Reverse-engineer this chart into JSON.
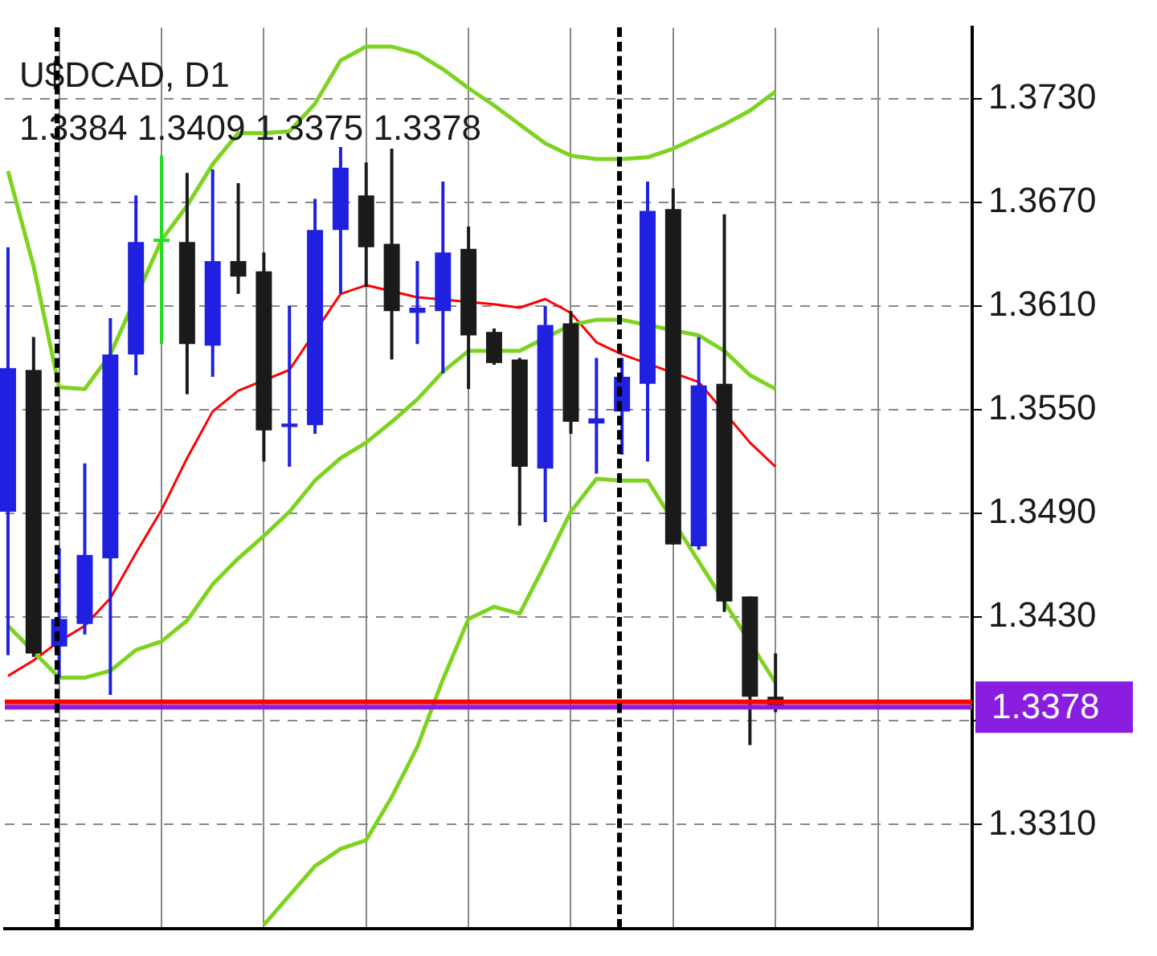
{
  "chart_data": {
    "type": "candlestick",
    "title": "U$DCAD, D1",
    "annotations": [
      "1.3384 1.3409 1.3375 1.3378"
    ],
    "categories": [
      null,
      null,
      null,
      null,
      null,
      null,
      null,
      null,
      null,
      null,
      null,
      null,
      null,
      null,
      null,
      null,
      null,
      null,
      null,
      null,
      null,
      null,
      null,
      null,
      null,
      null,
      null,
      null,
      null,
      null,
      null
    ],
    "ohlc": [
      [
        1.3491,
        1.3644,
        1.3408,
        1.3574
      ],
      [
        1.3573,
        1.3592,
        1.3407,
        1.3409
      ],
      [
        1.3413,
        1.347,
        1.3395,
        1.3429
      ],
      [
        1.3426,
        1.3519,
        1.342,
        1.3466
      ],
      [
        1.3464,
        1.3603,
        1.3385,
        1.3582
      ],
      [
        1.3582,
        1.3674,
        1.357,
        1.3647
      ],
      [
        1.3648,
        1.3697,
        1.3588,
        1.3648
      ],
      [
        1.3647,
        1.3687,
        1.3559,
        1.3588
      ],
      [
        1.3587,
        1.3689,
        1.3569,
        1.3636
      ],
      [
        1.3636,
        1.3681,
        1.3617,
        1.3627
      ],
      [
        1.363,
        1.3641,
        1.352,
        1.3538
      ],
      [
        1.354,
        1.361,
        1.3517,
        1.3542
      ],
      [
        1.3541,
        1.3672,
        1.3536,
        1.3654
      ],
      [
        1.3654,
        1.3702,
        1.3617,
        1.369
      ],
      [
        1.3674,
        1.3693,
        1.3621,
        1.3644
      ],
      [
        1.3646,
        1.3701,
        1.3579,
        1.3607
      ],
      [
        1.3606,
        1.3636,
        1.3588,
        1.3609
      ],
      [
        1.3607,
        1.3682,
        1.3571,
        1.3641
      ],
      [
        1.3643,
        1.3656,
        1.3562,
        1.3593
      ],
      [
        1.3595,
        1.3597,
        1.3576,
        1.3577
      ],
      [
        1.3579,
        1.358,
        1.3483,
        1.3517
      ],
      [
        1.3516,
        1.361,
        1.3485,
        1.3599
      ],
      [
        1.36,
        1.3607,
        1.3536,
        1.3543
      ],
      [
        1.3542,
        1.358,
        1.3513,
        1.3545
      ],
      [
        1.3549,
        1.358,
        1.3524,
        1.3569
      ],
      [
        1.3565,
        1.3682,
        1.352,
        1.3665
      ],
      [
        1.3666,
        1.3678,
        1.3472,
        1.3472
      ],
      [
        1.3471,
        1.3592,
        1.3469,
        1.3564
      ],
      [
        1.3565,
        1.3663,
        1.3433,
        1.3439
      ],
      [
        1.3442,
        1.3442,
        1.3356,
        1.3384
      ],
      [
        1.3384,
        1.3409,
        1.3375,
        1.3378
      ]
    ],
    "colors": [
      "#2020e0",
      "#1a1a1a",
      "#2020e0",
      "#2020e0",
      "#2020e0",
      "#2020e0",
      "#22dd22",
      "#1a1a1a",
      "#2020e0",
      "#1a1a1a",
      "#1a1a1a",
      "#2020e0",
      "#2020e0",
      "#2020e0",
      "#1a1a1a",
      "#1a1a1a",
      "#2020e0",
      "#2020e0",
      "#1a1a1a",
      "#1a1a1a",
      "#1a1a1a",
      "#2020e0",
      "#1a1a1a",
      "#2020e0",
      "#2020e0",
      "#2020e0",
      "#1a1a1a",
      "#2020e0",
      "#1a1a1a",
      "#1a1a1a",
      "#1a1a1a"
    ],
    "series": [
      {
        "type": "line",
        "color": "#7ed321",
        "values": [
          1.3688,
          1.3633,
          1.3563,
          1.3562,
          1.3582,
          null,
          1.3648,
          1.3668,
          1.3692,
          1.371,
          1.371,
          1.3711,
          1.3727,
          1.3752,
          1.376,
          1.376,
          1.3756,
          1.3747,
          1.3736,
          1.3726,
          1.3715,
          1.3704,
          1.3697,
          1.3695,
          1.3695,
          1.3696,
          1.3701,
          1.3708,
          1.3715,
          1.3723,
          1.3734
        ]
      },
      {
        "type": "line",
        "color": "#7ed321",
        "values": [
          1.3425,
          1.341,
          1.3395,
          1.3395,
          1.3399,
          1.3411,
          1.3416,
          1.3428,
          1.3449,
          1.3464,
          1.3477,
          1.3491,
          1.3509,
          1.3522,
          1.3531,
          1.3543,
          1.3556,
          1.3572,
          1.3584,
          null,
          1.3584,
          null,
          1.3599,
          1.3602,
          1.3602,
          null,
          null,
          1.3593,
          1.3584,
          1.357,
          1.3562
        ]
      },
      {
        "type": "line",
        "color": "#7ed321",
        "values": [
          null,
          null,
          null,
          null,
          null,
          null,
          null,
          null,
          null,
          null,
          1.3252,
          1.3269,
          1.3286,
          1.3296,
          1.3301,
          1.3326,
          1.3355,
          1.3394,
          1.3429,
          1.3436,
          1.3432,
          1.3461,
          1.3491,
          1.351,
          1.3509,
          1.3509,
          null,
          null,
          null,
          null,
          1.3392
        ]
      },
      {
        "type": "line",
        "color": "#ff0000",
        "values": [
          1.3396,
          1.3405,
          1.3416,
          1.3425,
          1.3441,
          1.3467,
          1.3492,
          1.3522,
          1.3549,
          1.3561,
          null,
          1.3573,
          null,
          1.3617,
          1.3622,
          null,
          1.3615,
          null,
          null,
          1.3611,
          1.3609,
          1.3614,
          1.3606,
          1.3589,
          1.3582,
          null,
          null,
          1.3566,
          null,
          1.3531,
          1.3517
        ]
      }
    ],
    "ylim": [
      1.325,
      1.3771
    ],
    "yticks": [
      {
        "value": 1.331,
        "label": "1.3310"
      },
      {
        "value": 1.337,
        "label": null
      },
      {
        "value": 1.343,
        "label": "1.3430"
      },
      {
        "value": 1.349,
        "label": "1.3490"
      },
      {
        "value": 1.355,
        "label": "1.3550"
      },
      {
        "value": 1.361,
        "label": "1.3610"
      },
      {
        "value": 1.367,
        "label": "1.3670"
      },
      {
        "value": 1.373,
        "label": "1.3730"
      }
    ],
    "grid": true,
    "tick_labels": "y",
    "ref_lines": [
      {
        "axis": "y",
        "value": 1.3381,
        "color": "#ff0000"
      },
      {
        "axis": "y",
        "value": 1.3378,
        "label": "1.3378",
        "color": "#8a1ee0"
      }
    ]
  }
}
